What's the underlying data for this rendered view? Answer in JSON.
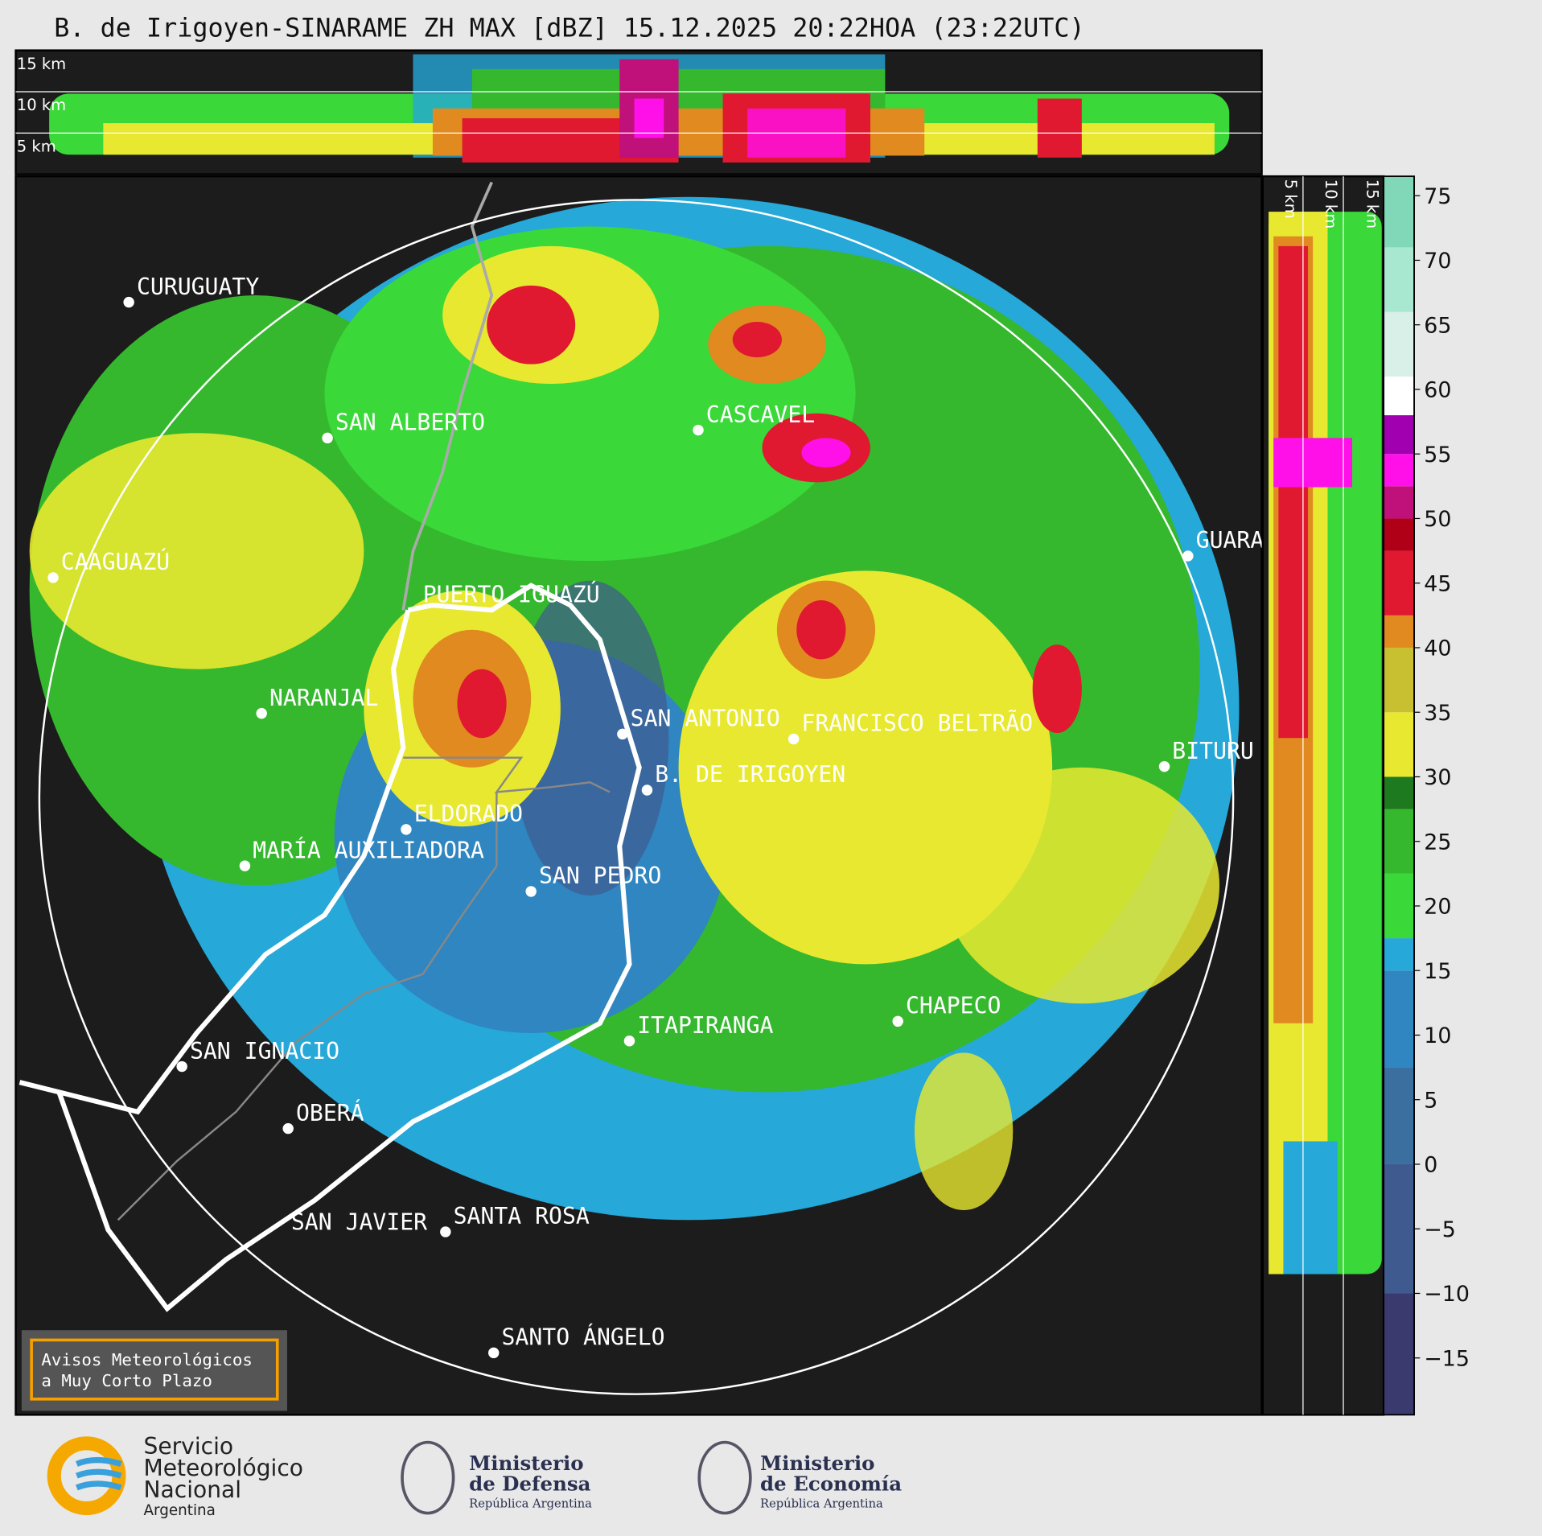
{
  "header": {
    "title": "B. de Irigoyen-SINARAME ZH MAX [dBZ] 15.12.2025 20:22HOA (23:22UTC)"
  },
  "top_section": {
    "labels": [
      "15 km",
      "10 km",
      "5 km"
    ]
  },
  "side_section": {
    "labels": [
      "5 km",
      "10 km",
      "15 km"
    ]
  },
  "cities": [
    "CURUGUATY",
    "SAN ALBERTO",
    "CAAGUAZÚ",
    "PUERTO IGUAZÚ",
    "NARANJAL",
    "SAN ANTONIO",
    "FRANCISCO BELTRÃO",
    "CASCAVEL",
    "GUARA",
    "BITURU",
    "B. DE IRIGOYEN",
    "ELDORADO",
    "MARÍA AUXILIADORA",
    "SAN PEDRO",
    "ITAPIRANGA",
    "CHAPECO",
    "SAN IGNACIO",
    "OBERÁ",
    "SAN JAVIER",
    "SANTA ROSA",
    "SANTO ÁNGELO"
  ],
  "colorbar": {
    "lim": [
      -19.4,
      76.5
    ],
    "ticks": [
      {
        "value": -15,
        "label": "−15"
      },
      {
        "value": -10,
        "label": "−10"
      },
      {
        "value": -5,
        "label": "−5"
      },
      0,
      5,
      10,
      15,
      20,
      25,
      30,
      35,
      40,
      45,
      50,
      55,
      60,
      65,
      70,
      75
    ],
    "bands": [
      {
        "from": -19.4,
        "color": "#3a3a6e"
      },
      {
        "from": -10,
        "color": "#3f5a8e"
      },
      {
        "from": 0,
        "color": "#3a6fa0"
      },
      {
        "from": 7.5,
        "color": "#2f86c0"
      },
      {
        "from": 15,
        "color": "#26a8d8"
      },
      {
        "from": 17.5,
        "color": "#3ad838"
      },
      {
        "from": 22.5,
        "color": "#35b82e"
      },
      {
        "from": 27.5,
        "color": "#1e7a1e"
      },
      {
        "from": 30,
        "color": "#e8e830"
      },
      {
        "from": 35,
        "color": "#c8c030"
      },
      {
        "from": 40,
        "color": "#e08a20"
      },
      {
        "from": 42.5,
        "color": "#e01830"
      },
      {
        "from": 47.5,
        "color": "#b00018"
      },
      {
        "from": 50,
        "color": "#c0107a"
      },
      {
        "from": 52.5,
        "color": "#ff10e8"
      },
      {
        "from": 55,
        "color": "#a000b0"
      },
      {
        "from": 58,
        "color": "#ffffff"
      },
      {
        "from": 61,
        "color": "#d8f0e8"
      },
      {
        "from": 66,
        "color": "#a8e8d0"
      },
      {
        "from": 71,
        "color": "#80d8b8"
      }
    ]
  },
  "warning": {
    "lines": [
      "Avisos Meteorológicos",
      "a Muy Corto Plazo"
    ]
  },
  "logos": [
    {
      "lines": [
        "Servicio",
        "Meteorológico",
        "Nacional",
        "Argentina"
      ]
    },
    {
      "lines": [
        "Ministerio",
        "de Defensa",
        "República Argentina"
      ]
    },
    {
      "lines": [
        "Ministerio",
        "de Economía",
        "República Argentina"
      ]
    }
  ]
}
